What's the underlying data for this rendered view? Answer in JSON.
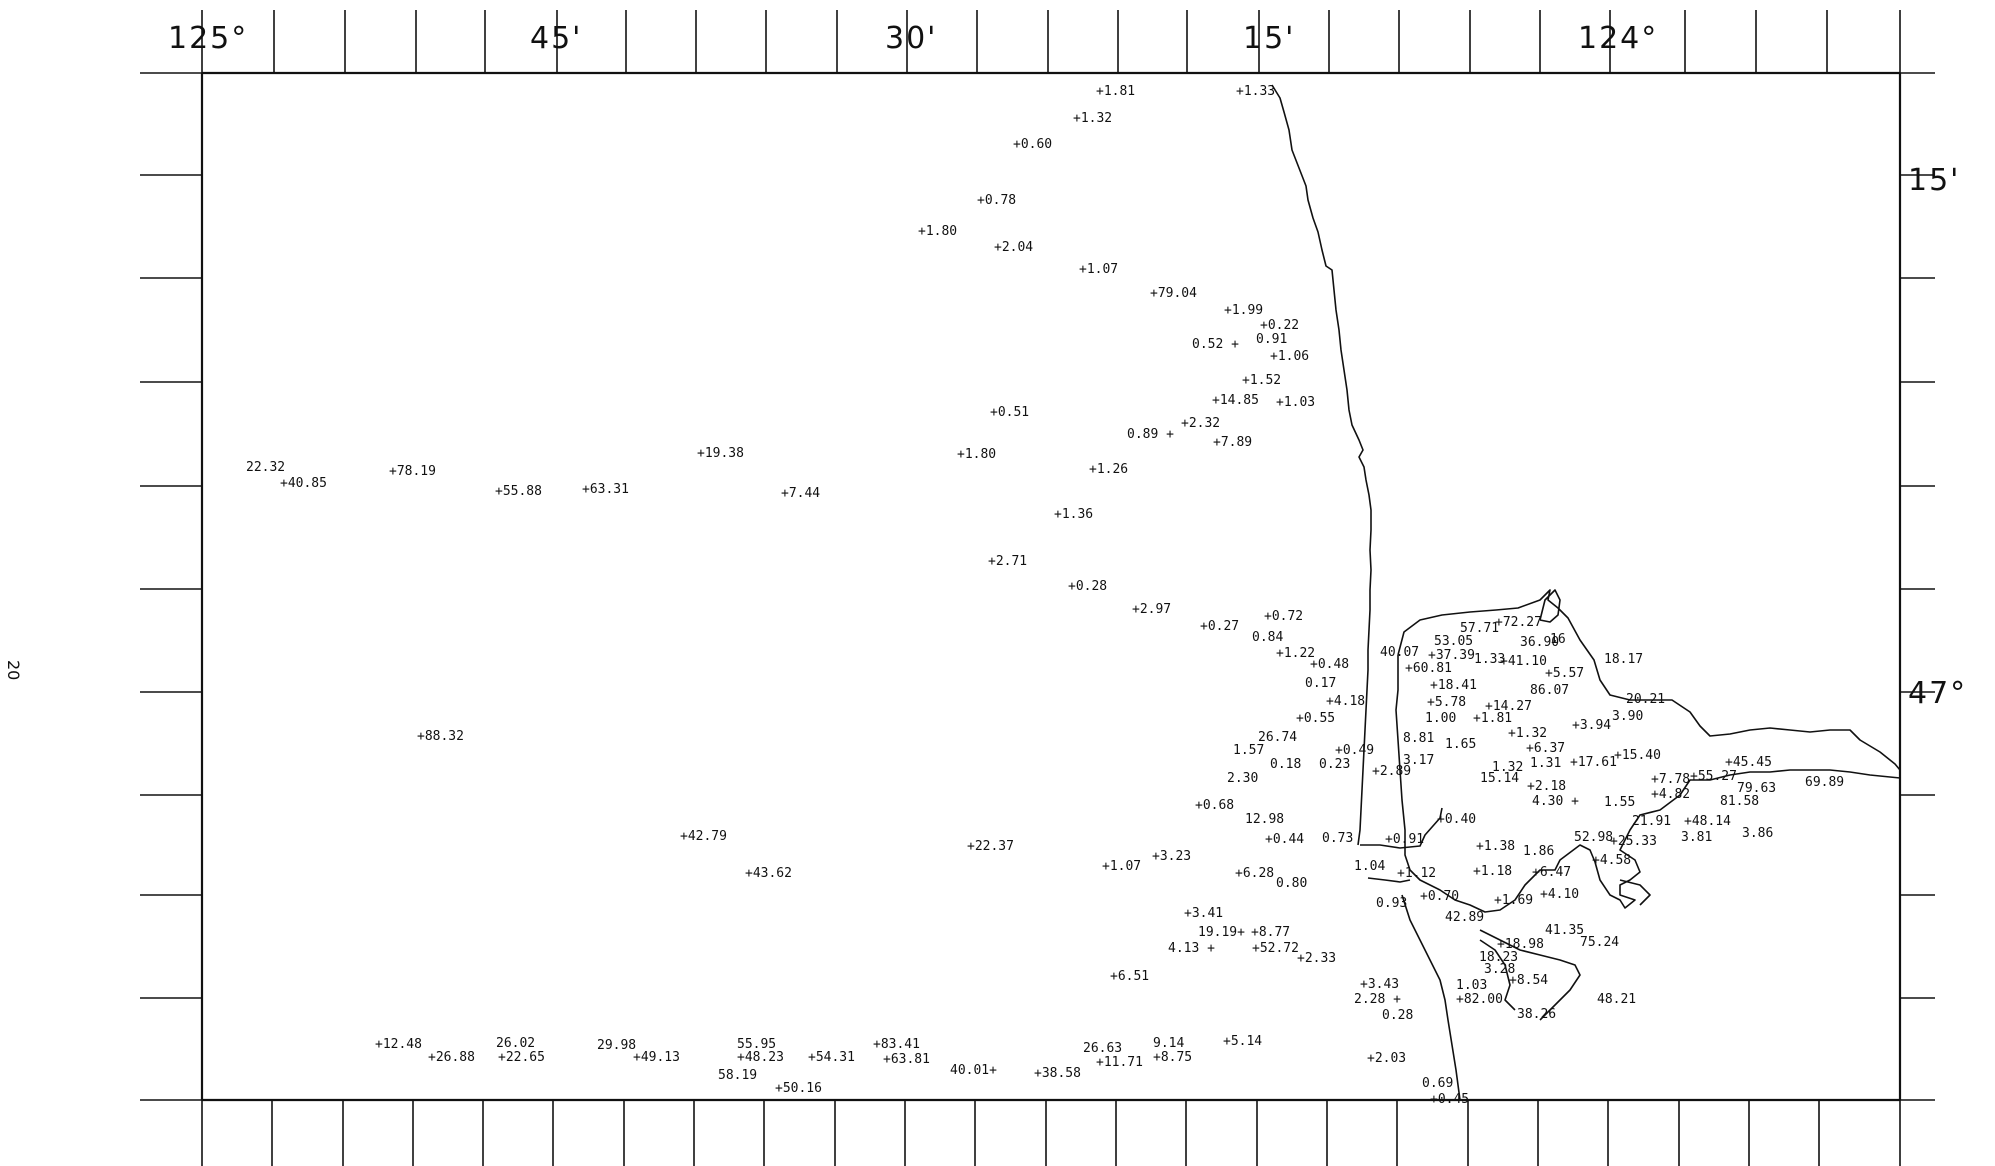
{
  "page_number": "20",
  "axes": {
    "top_labels": [
      "125°",
      "45'",
      "30'",
      "15'",
      "124°"
    ],
    "right_labels": [
      "15'",
      "47°"
    ]
  },
  "stations": [
    "+1.81",
    "+1.33",
    "+1.32",
    "+0.60",
    "+0.78",
    "+1.80",
    "+2.04",
    "+1.07",
    "+79.04",
    "+1.99",
    "+0.22",
    "0.52 +",
    "0.91",
    "+1.06",
    "+1.52",
    "+14.85",
    "+1.03",
    "+0.51",
    "+2.32",
    "0.89 +",
    "+7.89",
    "+1.80",
    "+1.26",
    "+1.36",
    "+2.71",
    "+0.28",
    "+2.97",
    "+0.27",
    "+0.72",
    "0.84",
    "+1.22",
    "+0.48",
    "0.17",
    "+4.18",
    "+0.55",
    "26.74",
    "1.57",
    "+0.49",
    "0.18",
    "0.23",
    "2.30",
    "+2.89",
    "+0.68",
    "12.98",
    "+0.44",
    "0.73",
    "+0.91",
    "+0.40",
    "22.32",
    "+40.85",
    "+78.19",
    "+55.88",
    "+63.31",
    "+19.38",
    "+7.44",
    "+88.32",
    "+42.79",
    "+43.62",
    "+22.37",
    "+1.07",
    "+3.23",
    "+6.28",
    "0.80",
    "1.04",
    "+1.12",
    "0.93",
    "+0.70",
    "+3.41",
    "19.19+",
    "4.13 +",
    "+8.77",
    "+52.72",
    "+2.33",
    "+6.51",
    "+3.43",
    "2.28 +",
    "0.28",
    "+12.48",
    "+26.88",
    "26.02",
    "+22.65",
    "29.98",
    "+49.13",
    "55.95",
    "+48.23",
    "+54.31",
    "58.19",
    "+50.16",
    "+83.41",
    "+63.81",
    "40.01+",
    "+38.58",
    "26.63",
    "+11.71",
    "9.14",
    "+8.75",
    "+5.14",
    "+2.03",
    "0.69",
    "+0.45",
    "40.07",
    "53.05",
    "57.71",
    "+72.27",
    "36.90",
    "16",
    "+37.39",
    "+60.81",
    "1.33",
    "+41.10",
    "+5.57",
    "18.17",
    "+18.41",
    "86.07",
    "+5.78",
    "+14.27",
    "20.21",
    "1.00",
    "+1.81",
    "3.90",
    "+3.94",
    "8.81",
    "1.65",
    "+1.32",
    "+6.37",
    "3.17",
    "1.32",
    "1.31",
    "+17.61",
    "+15.40",
    "15.14",
    "+2.18",
    "4.30 +",
    "1.55",
    "+7.78",
    "+55.27",
    "+45.45",
    "+4.82",
    "79.63",
    "81.58",
    "69.89",
    "21.91",
    "+48.14",
    "+1.38",
    "1.86",
    "52.98",
    "+25.33",
    "3.81",
    "3.86",
    "+4.58",
    "+1.18",
    "+6.47",
    "+1.69",
    "+4.10",
    "42.89",
    "41.35",
    "75.24",
    "+18.98",
    "18.23",
    "3.28",
    "+8.54",
    "1.03",
    "+82.00",
    "38.26",
    "48.21"
  ]
}
